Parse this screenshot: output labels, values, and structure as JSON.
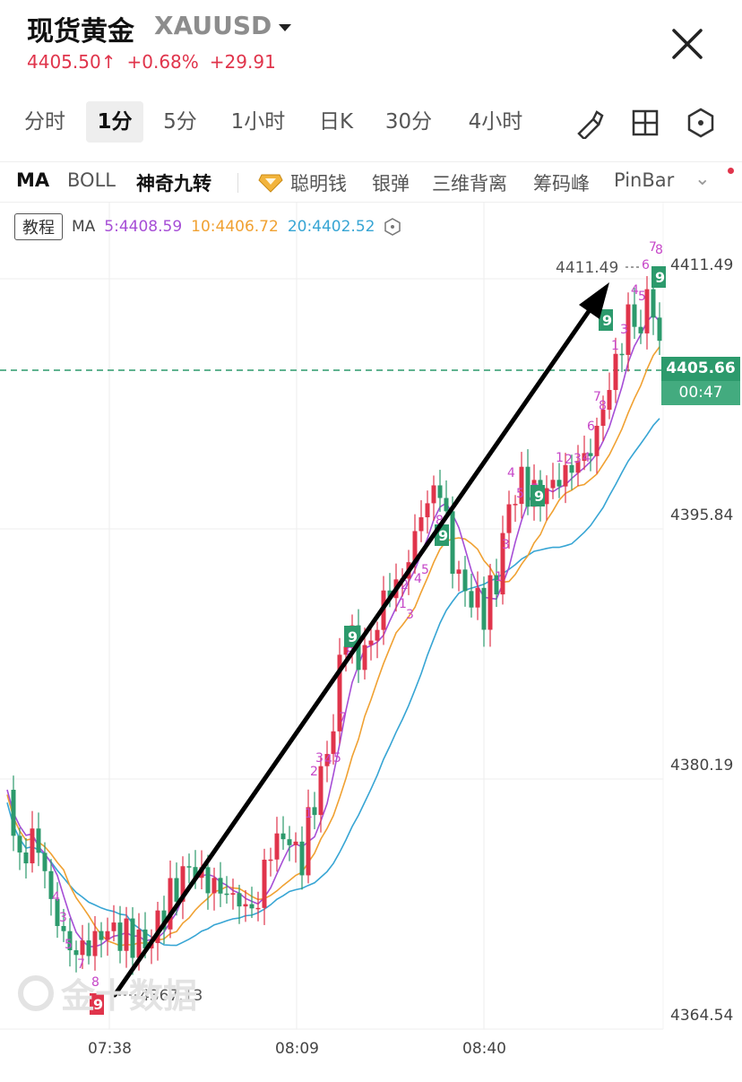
{
  "header": {
    "title": "现货黄金",
    "symbol": "XAUUSD",
    "price": "4405.50",
    "change_pct": "+0.68%",
    "change_abs": "+29.91",
    "price_color": "#e0344b"
  },
  "timeframes": [
    "分时",
    "1分",
    "5分",
    "1小时",
    "日K",
    "30分",
    "4小时"
  ],
  "active_timeframe": "1分",
  "indicators": {
    "items": [
      "MA",
      "BOLL",
      "神奇九转",
      "聪明钱",
      "银弹",
      "三维背离",
      "筹码峰",
      "PinBar"
    ],
    "bold": [
      "MA",
      "神奇九转"
    ]
  },
  "ma_legend": {
    "tutorial": "教程",
    "label": "MA",
    "ma5": "5:4408.59",
    "ma10": "10:4406.72",
    "ma20": "20:4402.52",
    "colors": {
      "ma5": "#a64ed6",
      "ma10": "#f0a132",
      "ma20": "#37a5d4"
    }
  },
  "price_axis": [
    "4411.49",
    "4395.84",
    "4380.19",
    "4364.54"
  ],
  "current_price": {
    "value": "4405.66",
    "countdown": "00:47"
  },
  "high_marker": "4411.49",
  "low_marker": "4367.13",
  "time_axis": [
    "07:38",
    "08:09",
    "08:40"
  ],
  "colors": {
    "up": "#e0344b",
    "down": "#2c9a6c"
  },
  "chart_data": {
    "type": "candlestick",
    "ylim": [
      4362,
      4414
    ],
    "x": [
      "07:38",
      "08:09",
      "08:40"
    ],
    "low": 4367.13,
    "high": 4411.49,
    "last": 4405.66,
    "trend": "up",
    "ma_series": [
      "MA5",
      "MA10",
      "MA20"
    ]
  },
  "watermark": "金十数据"
}
